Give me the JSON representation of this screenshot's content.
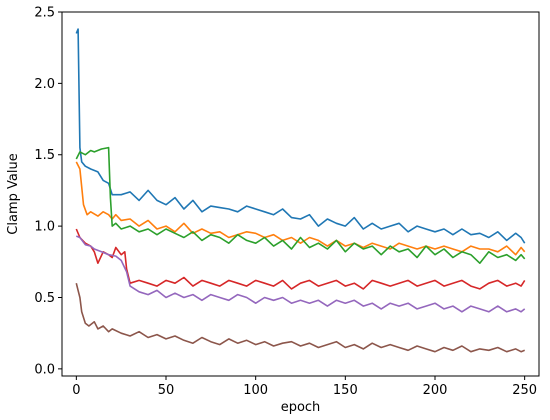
{
  "chart_data": {
    "type": "line",
    "title": "",
    "xlabel": "epoch",
    "ylabel": "Clamp Value",
    "xlim": [
      -8,
      258
    ],
    "ylim": [
      -0.05,
      2.5
    ],
    "xticks": [
      0,
      50,
      100,
      150,
      200,
      250
    ],
    "yticks": [
      0.0,
      0.5,
      1.0,
      1.5,
      2.0,
      2.5
    ],
    "xtick_labels": [
      "0",
      "50",
      "100",
      "150",
      "200",
      "250"
    ],
    "ytick_labels": [
      "0.0",
      "0.5",
      "1.0",
      "1.5",
      "2.0",
      "2.5"
    ],
    "grid": false,
    "legend": "none",
    "series": [
      {
        "color": "#1f77b4",
        "x": [
          0,
          1,
          2,
          3,
          5,
          8,
          12,
          15,
          18,
          20,
          25,
          30,
          35,
          40,
          45,
          50,
          55,
          60,
          65,
          70,
          75,
          80,
          85,
          90,
          95,
          100,
          105,
          110,
          115,
          120,
          125,
          130,
          135,
          140,
          145,
          150,
          155,
          160,
          165,
          170,
          175,
          180,
          185,
          190,
          195,
          200,
          205,
          210,
          215,
          220,
          225,
          230,
          235,
          240,
          245,
          248,
          250
        ],
        "y": [
          2.35,
          2.38,
          1.55,
          1.45,
          1.42,
          1.4,
          1.38,
          1.32,
          1.3,
          1.22,
          1.22,
          1.24,
          1.18,
          1.25,
          1.18,
          1.15,
          1.2,
          1.12,
          1.18,
          1.1,
          1.14,
          1.13,
          1.12,
          1.1,
          1.14,
          1.12,
          1.1,
          1.08,
          1.12,
          1.06,
          1.05,
          1.08,
          1.0,
          1.05,
          1.02,
          1.0,
          1.06,
          0.98,
          1.02,
          0.98,
          1.0,
          1.02,
          0.96,
          1.0,
          0.98,
          0.96,
          0.98,
          0.94,
          0.98,
          0.94,
          0.95,
          0.92,
          0.96,
          0.9,
          0.95,
          0.92,
          0.88
        ]
      },
      {
        "color": "#ff7f0e",
        "x": [
          0,
          2,
          4,
          6,
          8,
          12,
          15,
          18,
          20,
          22,
          25,
          30,
          35,
          40,
          45,
          50,
          55,
          60,
          65,
          70,
          75,
          80,
          85,
          90,
          95,
          100,
          105,
          110,
          115,
          120,
          125,
          130,
          135,
          140,
          145,
          150,
          155,
          160,
          165,
          170,
          175,
          180,
          185,
          190,
          195,
          200,
          205,
          210,
          215,
          220,
          225,
          230,
          235,
          240,
          245,
          248,
          250
        ],
        "y": [
          1.45,
          1.4,
          1.15,
          1.08,
          1.1,
          1.07,
          1.1,
          1.08,
          1.05,
          1.08,
          1.04,
          1.05,
          1.0,
          1.04,
          0.98,
          1.0,
          0.96,
          1.02,
          0.95,
          0.98,
          0.95,
          0.96,
          0.92,
          0.94,
          0.96,
          0.95,
          0.92,
          0.94,
          0.9,
          0.92,
          0.88,
          0.92,
          0.9,
          0.86,
          0.9,
          0.86,
          0.88,
          0.85,
          0.88,
          0.86,
          0.84,
          0.88,
          0.86,
          0.84,
          0.86,
          0.84,
          0.86,
          0.84,
          0.82,
          0.86,
          0.84,
          0.84,
          0.82,
          0.86,
          0.8,
          0.85,
          0.82
        ]
      },
      {
        "color": "#2ca02c",
        "x": [
          0,
          2,
          5,
          8,
          10,
          14,
          18,
          19,
          20,
          22,
          25,
          30,
          35,
          40,
          45,
          50,
          55,
          60,
          65,
          70,
          75,
          80,
          85,
          90,
          95,
          100,
          105,
          110,
          115,
          120,
          125,
          130,
          135,
          140,
          145,
          150,
          155,
          160,
          165,
          170,
          175,
          180,
          185,
          190,
          195,
          200,
          205,
          210,
          215,
          220,
          225,
          230,
          235,
          240,
          245,
          248,
          250
        ],
        "y": [
          1.47,
          1.52,
          1.5,
          1.53,
          1.52,
          1.54,
          1.55,
          1.2,
          1.0,
          1.02,
          0.98,
          1.0,
          0.96,
          0.98,
          0.94,
          0.98,
          0.95,
          0.92,
          0.96,
          0.9,
          0.94,
          0.92,
          0.88,
          0.94,
          0.9,
          0.88,
          0.92,
          0.86,
          0.9,
          0.84,
          0.92,
          0.85,
          0.88,
          0.84,
          0.9,
          0.82,
          0.88,
          0.84,
          0.86,
          0.8,
          0.86,
          0.82,
          0.84,
          0.78,
          0.86,
          0.8,
          0.84,
          0.78,
          0.82,
          0.8,
          0.74,
          0.82,
          0.78,
          0.8,
          0.76,
          0.8,
          0.77
        ]
      },
      {
        "color": "#d62728",
        "x": [
          0,
          2,
          5,
          8,
          10,
          12,
          15,
          18,
          20,
          22,
          25,
          27,
          28,
          30,
          35,
          40,
          45,
          50,
          55,
          60,
          65,
          70,
          75,
          80,
          85,
          90,
          95,
          100,
          105,
          110,
          115,
          120,
          125,
          130,
          135,
          140,
          145,
          150,
          155,
          160,
          165,
          170,
          175,
          180,
          185,
          190,
          195,
          200,
          205,
          210,
          215,
          220,
          225,
          230,
          235,
          240,
          245,
          248,
          250
        ],
        "y": [
          0.98,
          0.92,
          0.88,
          0.86,
          0.82,
          0.74,
          0.82,
          0.8,
          0.78,
          0.85,
          0.8,
          0.82,
          0.7,
          0.6,
          0.62,
          0.6,
          0.58,
          0.62,
          0.6,
          0.64,
          0.58,
          0.62,
          0.6,
          0.58,
          0.62,
          0.6,
          0.58,
          0.62,
          0.6,
          0.58,
          0.62,
          0.56,
          0.6,
          0.62,
          0.58,
          0.6,
          0.62,
          0.58,
          0.6,
          0.56,
          0.62,
          0.6,
          0.58,
          0.6,
          0.62,
          0.58,
          0.6,
          0.62,
          0.58,
          0.6,
          0.62,
          0.58,
          0.56,
          0.6,
          0.62,
          0.58,
          0.6,
          0.58,
          0.62
        ]
      },
      {
        "color": "#9467bd",
        "x": [
          0,
          2,
          5,
          8,
          10,
          14,
          18,
          22,
          25,
          28,
          30,
          35,
          40,
          45,
          50,
          55,
          60,
          65,
          70,
          75,
          80,
          85,
          90,
          95,
          100,
          105,
          110,
          115,
          120,
          125,
          130,
          135,
          140,
          145,
          150,
          155,
          160,
          165,
          170,
          175,
          180,
          185,
          190,
          195,
          200,
          205,
          210,
          215,
          220,
          225,
          230,
          235,
          240,
          245,
          248,
          250
        ],
        "y": [
          0.93,
          0.92,
          0.87,
          0.86,
          0.84,
          0.82,
          0.8,
          0.79,
          0.76,
          0.68,
          0.58,
          0.54,
          0.52,
          0.55,
          0.5,
          0.53,
          0.5,
          0.52,
          0.48,
          0.52,
          0.5,
          0.48,
          0.52,
          0.5,
          0.46,
          0.5,
          0.48,
          0.5,
          0.46,
          0.48,
          0.46,
          0.48,
          0.44,
          0.48,
          0.46,
          0.48,
          0.44,
          0.46,
          0.42,
          0.46,
          0.44,
          0.46,
          0.42,
          0.44,
          0.46,
          0.42,
          0.44,
          0.4,
          0.44,
          0.42,
          0.4,
          0.44,
          0.4,
          0.42,
          0.4,
          0.42
        ]
      },
      {
        "color": "#8c564b",
        "x": [
          0,
          1,
          2,
          3,
          5,
          7,
          10,
          12,
          15,
          18,
          20,
          25,
          30,
          35,
          40,
          45,
          50,
          55,
          60,
          65,
          70,
          75,
          80,
          85,
          90,
          95,
          100,
          105,
          110,
          115,
          120,
          125,
          130,
          135,
          140,
          145,
          150,
          155,
          160,
          165,
          170,
          175,
          180,
          185,
          190,
          195,
          200,
          205,
          210,
          215,
          220,
          225,
          230,
          235,
          240,
          245,
          248,
          250
        ],
        "y": [
          0.6,
          0.55,
          0.5,
          0.4,
          0.32,
          0.3,
          0.33,
          0.28,
          0.3,
          0.26,
          0.28,
          0.25,
          0.23,
          0.26,
          0.22,
          0.24,
          0.21,
          0.23,
          0.2,
          0.18,
          0.22,
          0.19,
          0.17,
          0.21,
          0.18,
          0.2,
          0.17,
          0.19,
          0.16,
          0.18,
          0.19,
          0.16,
          0.18,
          0.15,
          0.17,
          0.19,
          0.15,
          0.17,
          0.14,
          0.18,
          0.15,
          0.17,
          0.15,
          0.13,
          0.16,
          0.14,
          0.12,
          0.15,
          0.13,
          0.16,
          0.12,
          0.14,
          0.13,
          0.15,
          0.12,
          0.14,
          0.12,
          0.13
        ]
      }
    ]
  }
}
